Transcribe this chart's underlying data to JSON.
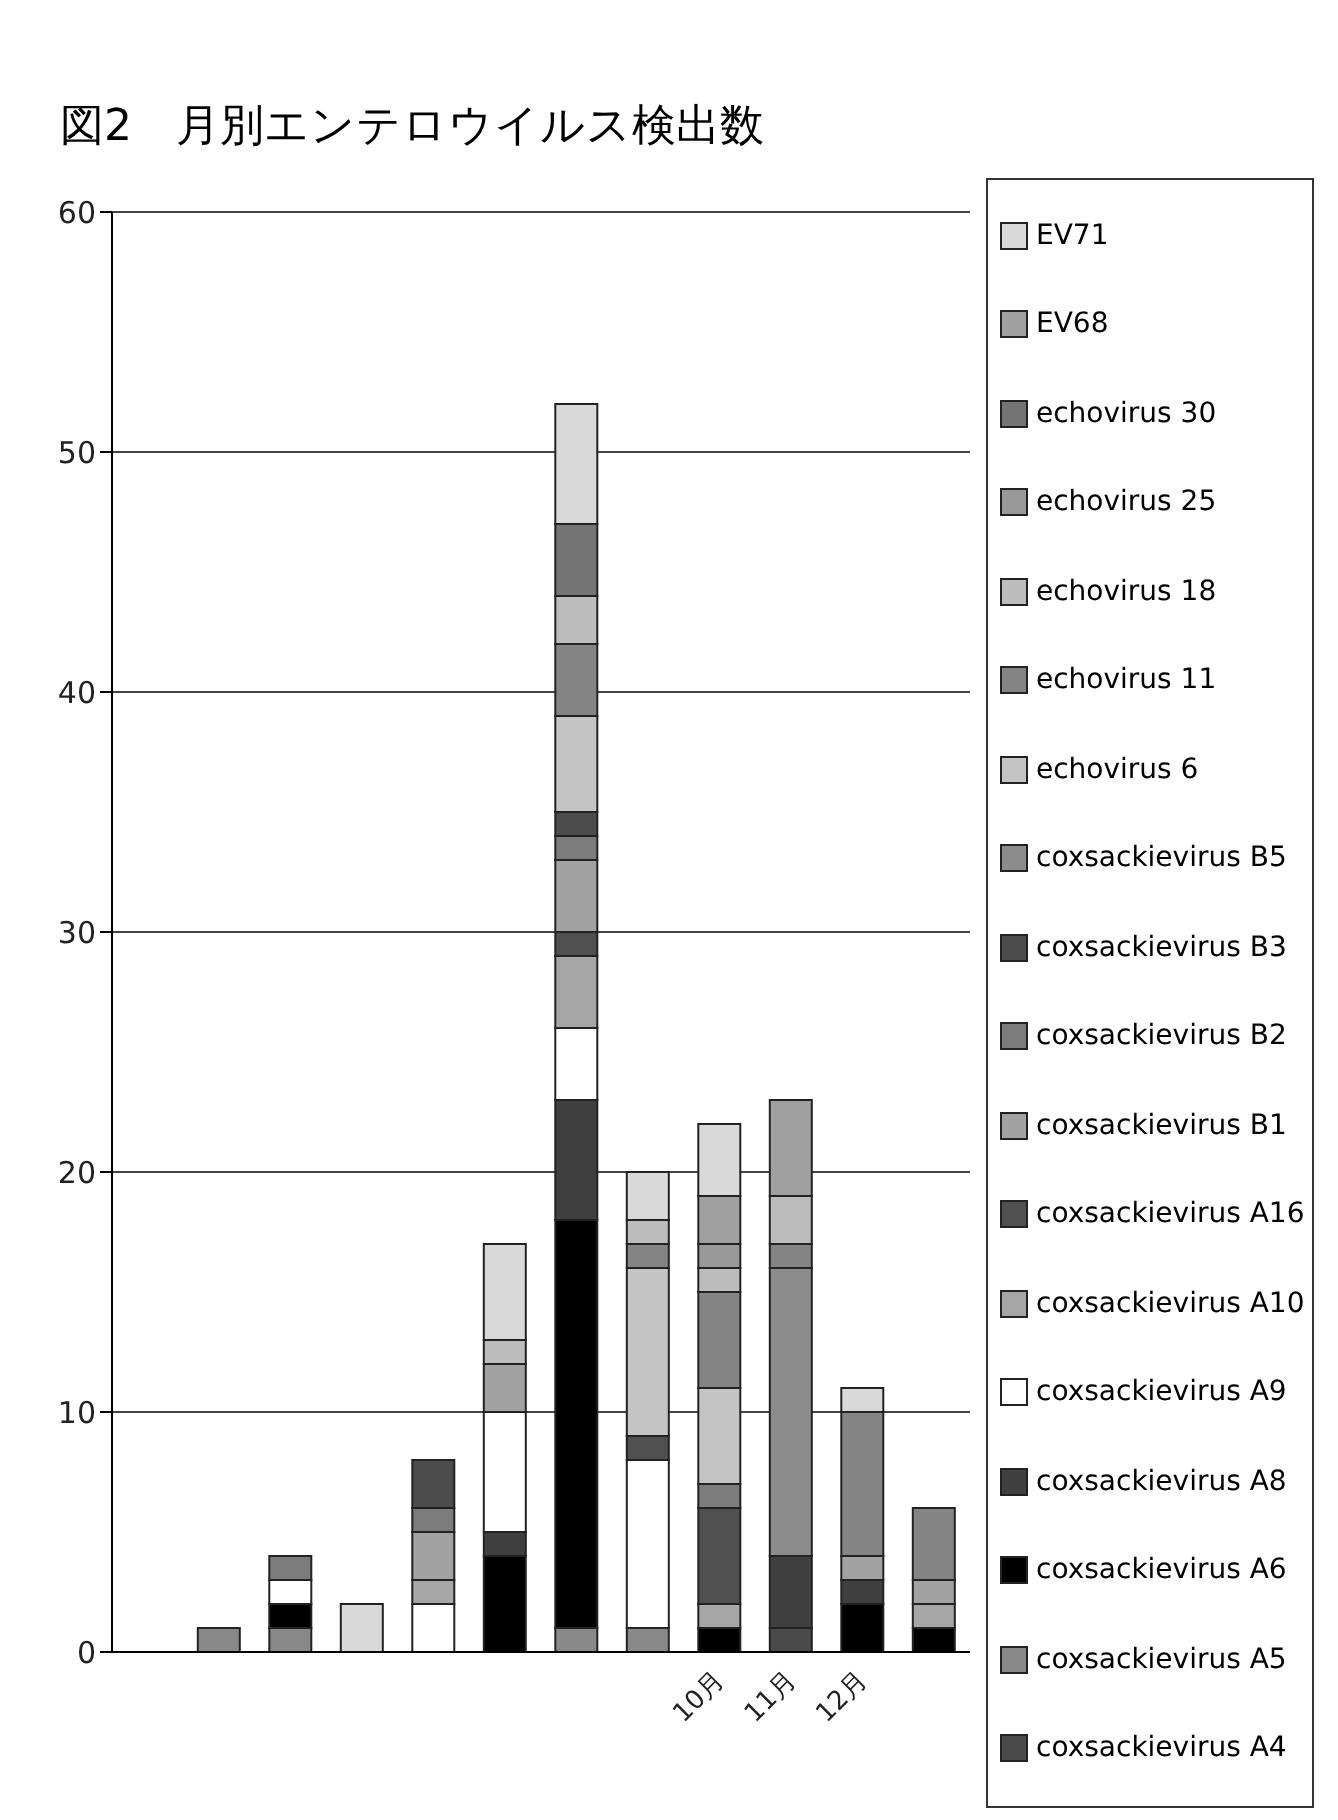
{
  "chart_data": {
    "type": "bar",
    "title": "図2　月別エンテロウイルス検出数",
    "stacked": true,
    "categories": [
      null,
      null,
      null,
      null,
      null,
      null,
      null,
      null,
      "10月",
      "11月",
      "12月",
      null
    ],
    "ylim": [
      0,
      60
    ],
    "yticks": [
      0,
      10,
      20,
      30,
      40,
      50,
      60
    ],
    "grid": "y",
    "legend": "right",
    "series": [
      {
        "name": "coxsackievirus A4",
        "color": "#4a4a4a",
        "values": [
          null,
          null,
          null,
          null,
          null,
          null,
          null,
          null,
          null,
          1,
          null,
          null
        ]
      },
      {
        "name": "coxsackievirus A5",
        "color": "#888888",
        "values": [
          null,
          1,
          1,
          null,
          null,
          null,
          1,
          1,
          null,
          null,
          null,
          null
        ]
      },
      {
        "name": "coxsackievirus A6",
        "color": "#000000",
        "values": [
          null,
          null,
          1,
          null,
          null,
          4,
          17,
          null,
          1,
          null,
          2,
          1
        ]
      },
      {
        "name": "coxsackievirus A8",
        "color": "#404040",
        "values": [
          null,
          null,
          null,
          null,
          null,
          1,
          5,
          null,
          null,
          3,
          1,
          null
        ]
      },
      {
        "name": "coxsackievirus A9",
        "color": "#ffffff",
        "values": [
          null,
          null,
          1,
          null,
          2,
          5,
          3,
          7,
          null,
          null,
          null,
          null
        ]
      },
      {
        "name": "coxsackievirus A10",
        "color": "#a6a6a6",
        "values": [
          null,
          null,
          null,
          null,
          1,
          null,
          3,
          null,
          1,
          null,
          null,
          1
        ]
      },
      {
        "name": "coxsackievirus A16",
        "color": "#505050",
        "values": [
          null,
          null,
          null,
          null,
          null,
          null,
          1,
          1,
          4,
          null,
          null,
          null
        ]
      },
      {
        "name": "coxsackievirus B1",
        "color": "#a2a2a2",
        "values": [
          null,
          null,
          null,
          null,
          2,
          2,
          3,
          null,
          null,
          null,
          1,
          1
        ]
      },
      {
        "name": "coxsackievirus B2",
        "color": "#7c7c7c",
        "values": [
          null,
          null,
          1,
          null,
          1,
          null,
          1,
          null,
          1,
          null,
          null,
          null
        ]
      },
      {
        "name": "coxsackievirus B3",
        "color": "#4c4c4c",
        "values": [
          null,
          null,
          null,
          null,
          2,
          null,
          1,
          null,
          null,
          null,
          null,
          null
        ]
      },
      {
        "name": "coxsackievirus B5",
        "color": "#8c8c8c",
        "values": [
          null,
          null,
          null,
          null,
          null,
          null,
          null,
          null,
          null,
          12,
          null,
          null
        ]
      },
      {
        "name": "echovirus 6",
        "color": "#c4c4c4",
        "values": [
          null,
          null,
          null,
          null,
          null,
          null,
          4,
          7,
          4,
          null,
          null,
          null
        ]
      },
      {
        "name": "echovirus 11",
        "color": "#848484",
        "values": [
          null,
          null,
          null,
          null,
          null,
          null,
          3,
          1,
          4,
          1,
          6,
          3
        ]
      },
      {
        "name": "echovirus 18",
        "color": "#bcbcbc",
        "values": [
          null,
          null,
          null,
          null,
          null,
          1,
          2,
          1,
          1,
          2,
          null,
          null
        ]
      },
      {
        "name": "echovirus 25",
        "color": "#999999",
        "values": [
          null,
          null,
          null,
          null,
          null,
          null,
          null,
          null,
          1,
          null,
          null,
          null
        ]
      },
      {
        "name": "echovirus 30",
        "color": "#747474",
        "values": [
          null,
          null,
          null,
          null,
          null,
          null,
          3,
          null,
          null,
          null,
          null,
          null
        ]
      },
      {
        "name": "EV68",
        "color": "#a0a0a0",
        "values": [
          null,
          null,
          null,
          null,
          null,
          null,
          null,
          null,
          2,
          4,
          null,
          null
        ]
      },
      {
        "name": "EV71",
        "color": "#d9d9d9",
        "values": [
          null,
          null,
          null,
          2,
          null,
          4,
          5,
          2,
          3,
          null,
          1,
          null
        ]
      }
    ]
  }
}
